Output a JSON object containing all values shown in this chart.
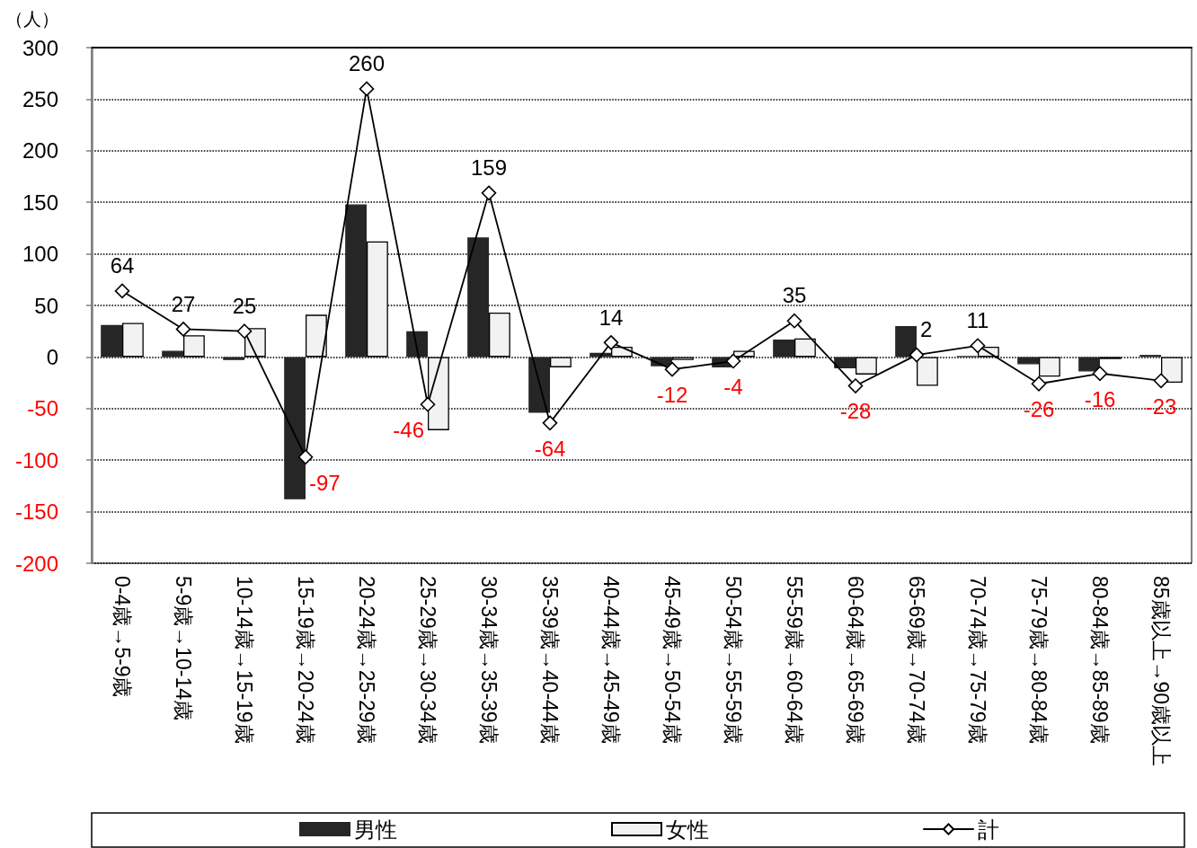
{
  "chart_data": {
    "type": "bar",
    "ylabel": "（人）",
    "categories": [
      "0-4歳→5-9歳",
      "5-9歳→10-14歳",
      "10-14歳→15-19歳",
      "15-19歳→20-24歳",
      "20-24歳→25-29歳",
      "25-29歳→30-34歳",
      "30-34歳→35-39歳",
      "35-39歳→40-44歳",
      "40-44歳→45-49歳",
      "45-49歳→50-54歳",
      "50-54歳→55-59歳",
      "55-59歳→60-64歳",
      "60-64歳→65-69歳",
      "65-69歳→70-74歳",
      "70-74歳→75-79歳",
      "75-79歳→80-84歳",
      "80-84歳→85-89歳",
      "85歳以上→90歳以上"
    ],
    "series": [
      {
        "name": "男性",
        "color": "#262626",
        "values": [
          31,
          6,
          -3,
          -138,
          148,
          25,
          116,
          -54,
          4,
          -9,
          -10,
          17,
          -11,
          30,
          1,
          -7,
          -14,
          2
        ]
      },
      {
        "name": "女性",
        "color": "#f2f2f2",
        "values": [
          33,
          21,
          28,
          41,
          112,
          -71,
          43,
          -10,
          10,
          -3,
          6,
          18,
          -17,
          -28,
          10,
          -19,
          -2,
          -25
        ]
      },
      {
        "name": "計",
        "type": "line",
        "color": "#000000",
        "values": [
          64,
          27,
          25,
          -97,
          260,
          -46,
          159,
          -64,
          14,
          -12,
          -4,
          35,
          -28,
          2,
          11,
          -26,
          -16,
          -23
        ],
        "value_labels": [
          "64",
          "27",
          "25",
          "-97",
          "260",
          "-46",
          "159",
          "-64",
          "14",
          "-12",
          "-4",
          "35",
          "-28",
          "2",
          "11",
          "-26",
          "-16",
          "-23"
        ]
      }
    ],
    "ylim": [
      -200,
      300
    ],
    "yticks": [
      -200,
      -150,
      -100,
      -50,
      0,
      50,
      100,
      150,
      200,
      250,
      300
    ],
    "grid": "y",
    "legend": "bottom",
    "marker": "diamond",
    "line_style": "solid"
  }
}
